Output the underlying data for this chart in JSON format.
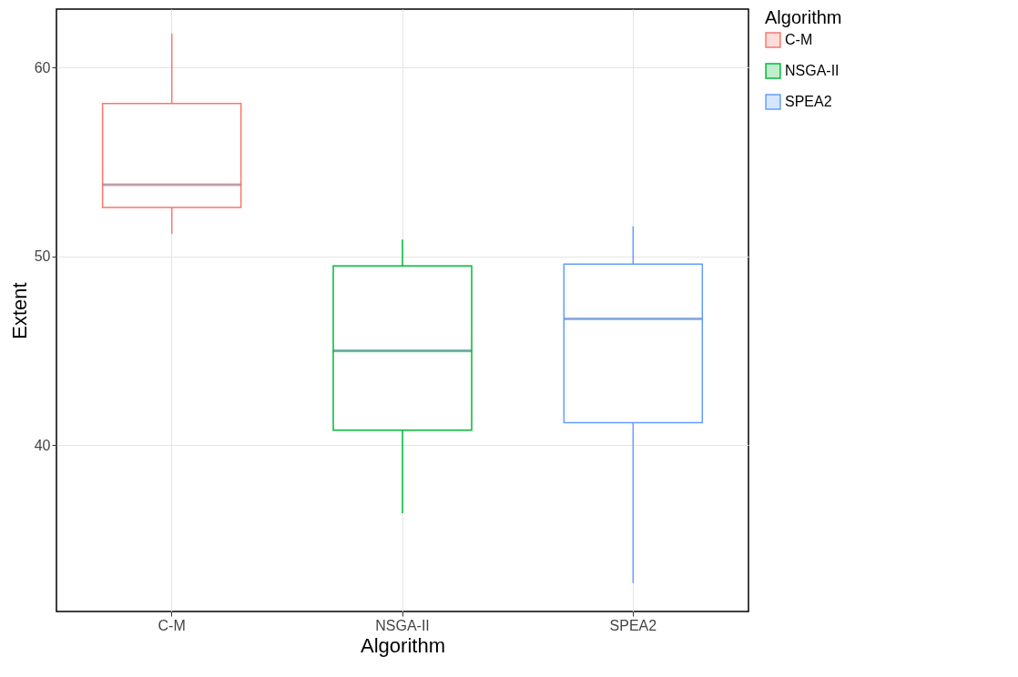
{
  "chart_data": {
    "type": "box",
    "xlabel": "Algorithm",
    "ylabel": "Extent",
    "legend_title": "Algorithm",
    "categories": [
      "C-M",
      "NSGA-II",
      "SPEA2"
    ],
    "series": [
      {
        "name": "C-M",
        "color": "#f8766d",
        "boxes": [
          {
            "low": 51.2,
            "q1": 52.6,
            "median": 53.8,
            "q3": 58.1,
            "high": 61.8
          },
          null,
          null
        ]
      },
      {
        "name": "NSGA-II",
        "color": "#00ba38",
        "boxes": [
          null,
          {
            "low": 36.4,
            "q1": 40.8,
            "median": 45.0,
            "q3": 49.5,
            "high": 50.9
          },
          null
        ]
      },
      {
        "name": "SPEA2",
        "color": "#619cff",
        "boxes": [
          null,
          null,
          {
            "low": 32.7,
            "q1": 41.2,
            "median": 46.7,
            "q3": 49.6,
            "high": 51.6
          }
        ]
      }
    ],
    "ylim": [
      31.2,
      63.1
    ],
    "yticks": [
      40,
      50,
      60
    ],
    "grid": true,
    "legend": "right"
  }
}
